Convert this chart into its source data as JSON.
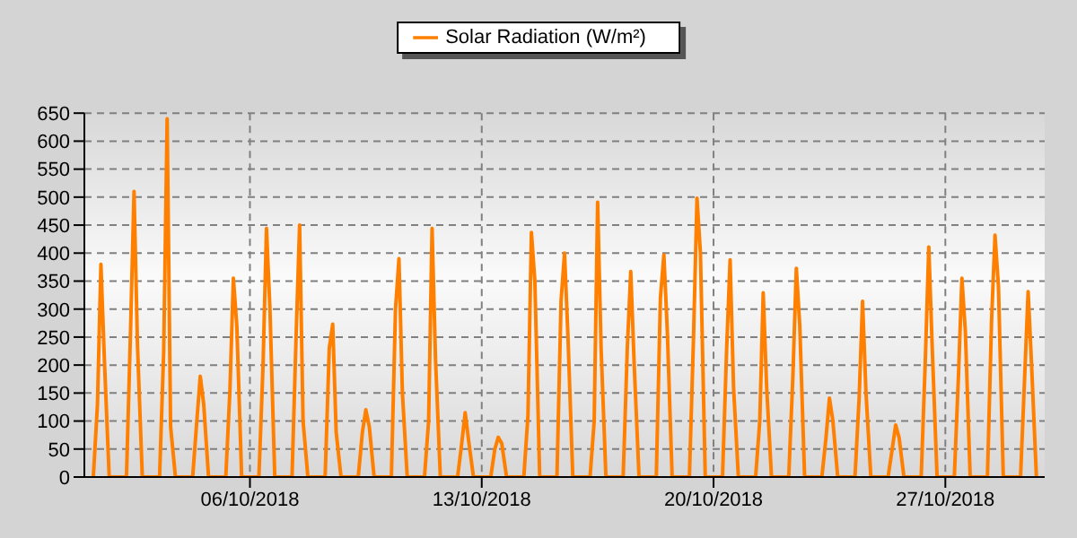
{
  "chart_data": {
    "type": "line",
    "x": [
      "2018-10-01T06:30",
      "2018-10-01T09:30",
      "2018-10-01T12:00",
      "2018-10-01T14:30",
      "2018-10-01T18:00",
      "2018-10-02T06:30",
      "2018-10-02T09:30",
      "2018-10-02T12:00",
      "2018-10-02T14:30",
      "2018-10-02T18:00",
      "2018-10-03T06:30",
      "2018-10-03T09:30",
      "2018-10-03T12:00",
      "2018-10-03T14:30",
      "2018-10-03T18:00",
      "2018-10-04T06:30",
      "2018-10-04T09:30",
      "2018-10-04T12:00",
      "2018-10-04T14:30",
      "2018-10-04T18:00",
      "2018-10-05T06:30",
      "2018-10-05T09:30",
      "2018-10-05T12:00",
      "2018-10-05T14:30",
      "2018-10-05T18:00",
      "2018-10-06T06:30",
      "2018-10-06T09:30",
      "2018-10-06T12:00",
      "2018-10-06T14:30",
      "2018-10-06T18:00",
      "2018-10-07T06:30",
      "2018-10-07T09:30",
      "2018-10-07T12:00",
      "2018-10-07T14:30",
      "2018-10-07T18:00",
      "2018-10-08T06:30",
      "2018-10-08T09:30",
      "2018-10-08T12:00",
      "2018-10-08T14:30",
      "2018-10-08T18:00",
      "2018-10-09T06:30",
      "2018-10-09T09:30",
      "2018-10-09T12:00",
      "2018-10-09T14:30",
      "2018-10-09T18:00",
      "2018-10-10T06:30",
      "2018-10-10T09:30",
      "2018-10-10T12:00",
      "2018-10-10T14:30",
      "2018-10-10T18:00",
      "2018-10-11T06:30",
      "2018-10-11T09:30",
      "2018-10-11T12:00",
      "2018-10-11T14:30",
      "2018-10-11T18:00",
      "2018-10-12T06:30",
      "2018-10-12T09:30",
      "2018-10-12T12:00",
      "2018-10-12T14:30",
      "2018-10-12T18:00",
      "2018-10-13T06:30",
      "2018-10-13T09:30",
      "2018-10-13T12:00",
      "2018-10-13T14:30",
      "2018-10-13T18:00",
      "2018-10-14T06:30",
      "2018-10-14T09:30",
      "2018-10-14T12:00",
      "2018-10-14T14:30",
      "2018-10-14T18:00",
      "2018-10-15T06:30",
      "2018-10-15T09:30",
      "2018-10-15T12:00",
      "2018-10-15T14:30",
      "2018-10-15T18:00",
      "2018-10-16T06:30",
      "2018-10-16T09:30",
      "2018-10-16T12:00",
      "2018-10-16T14:30",
      "2018-10-16T18:00",
      "2018-10-17T06:30",
      "2018-10-17T09:30",
      "2018-10-17T12:00",
      "2018-10-17T14:30",
      "2018-10-17T18:00",
      "2018-10-18T06:30",
      "2018-10-18T09:30",
      "2018-10-18T12:00",
      "2018-10-18T14:30",
      "2018-10-18T18:00",
      "2018-10-19T06:30",
      "2018-10-19T09:30",
      "2018-10-19T12:00",
      "2018-10-19T14:30",
      "2018-10-19T18:00",
      "2018-10-20T06:30",
      "2018-10-20T09:30",
      "2018-10-20T12:00",
      "2018-10-20T14:30",
      "2018-10-20T18:00",
      "2018-10-21T06:30",
      "2018-10-21T09:30",
      "2018-10-21T12:00",
      "2018-10-21T14:30",
      "2018-10-21T18:00",
      "2018-10-22T06:30",
      "2018-10-22T09:30",
      "2018-10-22T12:00",
      "2018-10-22T14:30",
      "2018-10-22T18:00",
      "2018-10-23T06:30",
      "2018-10-23T09:30",
      "2018-10-23T12:00",
      "2018-10-23T14:30",
      "2018-10-23T18:00",
      "2018-10-24T06:30",
      "2018-10-24T09:30",
      "2018-10-24T12:00",
      "2018-10-24T14:30",
      "2018-10-24T18:00",
      "2018-10-25T06:30",
      "2018-10-25T09:30",
      "2018-10-25T12:00",
      "2018-10-25T14:30",
      "2018-10-25T18:00",
      "2018-10-26T06:30",
      "2018-10-26T09:30",
      "2018-10-26T12:00",
      "2018-10-26T14:30",
      "2018-10-26T18:00",
      "2018-10-27T06:30",
      "2018-10-27T09:30",
      "2018-10-27T12:00",
      "2018-10-27T14:30",
      "2018-10-27T18:00",
      "2018-10-28T06:30",
      "2018-10-28T09:30",
      "2018-10-28T12:00",
      "2018-10-28T14:30",
      "2018-10-28T18:00",
      "2018-10-29T06:30",
      "2018-10-29T09:30",
      "2018-10-29T12:00",
      "2018-10-29T14:30",
      "2018-10-29T18:00"
    ],
    "series": [
      {
        "name": "Solar Radiation (W/m²)",
        "color": "#ff8000",
        "values": [
          0,
          130,
          380,
          210,
          0,
          0,
          265,
          510,
          235,
          0,
          0,
          225,
          640,
          90,
          0,
          0,
          100,
          180,
          130,
          0,
          0,
          155,
          355,
          270,
          0,
          0,
          200,
          444,
          300,
          0,
          0,
          255,
          450,
          100,
          0,
          0,
          230,
          273,
          80,
          0,
          0,
          80,
          120,
          90,
          0,
          0,
          300,
          390,
          150,
          0,
          0,
          100,
          444,
          210,
          0,
          0,
          60,
          115,
          65,
          0,
          0,
          50,
          71,
          60,
          0,
          0,
          110,
          437,
          350,
          0,
          0,
          315,
          400,
          250,
          0,
          0,
          100,
          491,
          230,
          0,
          0,
          230,
          367,
          200,
          0,
          0,
          320,
          397,
          260,
          0,
          0,
          250,
          498,
          400,
          0,
          0,
          230,
          388,
          160,
          0,
          0,
          100,
          329,
          160,
          0,
          0,
          180,
          373,
          270,
          0,
          0,
          70,
          141,
          100,
          0,
          0,
          140,
          314,
          150,
          0,
          0,
          50,
          93,
          70,
          0,
          0,
          210,
          411,
          230,
          0,
          0,
          180,
          355,
          260,
          0,
          0,
          280,
          432,
          340,
          0,
          0,
          180,
          331,
          200,
          0
        ]
      }
    ],
    "xlim": [
      "2018-10-01",
      "2018-10-30"
    ],
    "xticks": [
      {
        "value": "2018-10-06",
        "label": "06/10/2018"
      },
      {
        "value": "2018-10-13",
        "label": "13/10/2018"
      },
      {
        "value": "2018-10-20",
        "label": "20/10/2018"
      },
      {
        "value": "2018-10-27",
        "label": "27/10/2018"
      }
    ],
    "ylim": [
      0,
      650
    ],
    "yticks": [
      0,
      50,
      100,
      150,
      200,
      250,
      300,
      350,
      400,
      450,
      500,
      550,
      600,
      650
    ],
    "grid": true,
    "legend": "top",
    "marker": "none",
    "line_style": "solid"
  }
}
